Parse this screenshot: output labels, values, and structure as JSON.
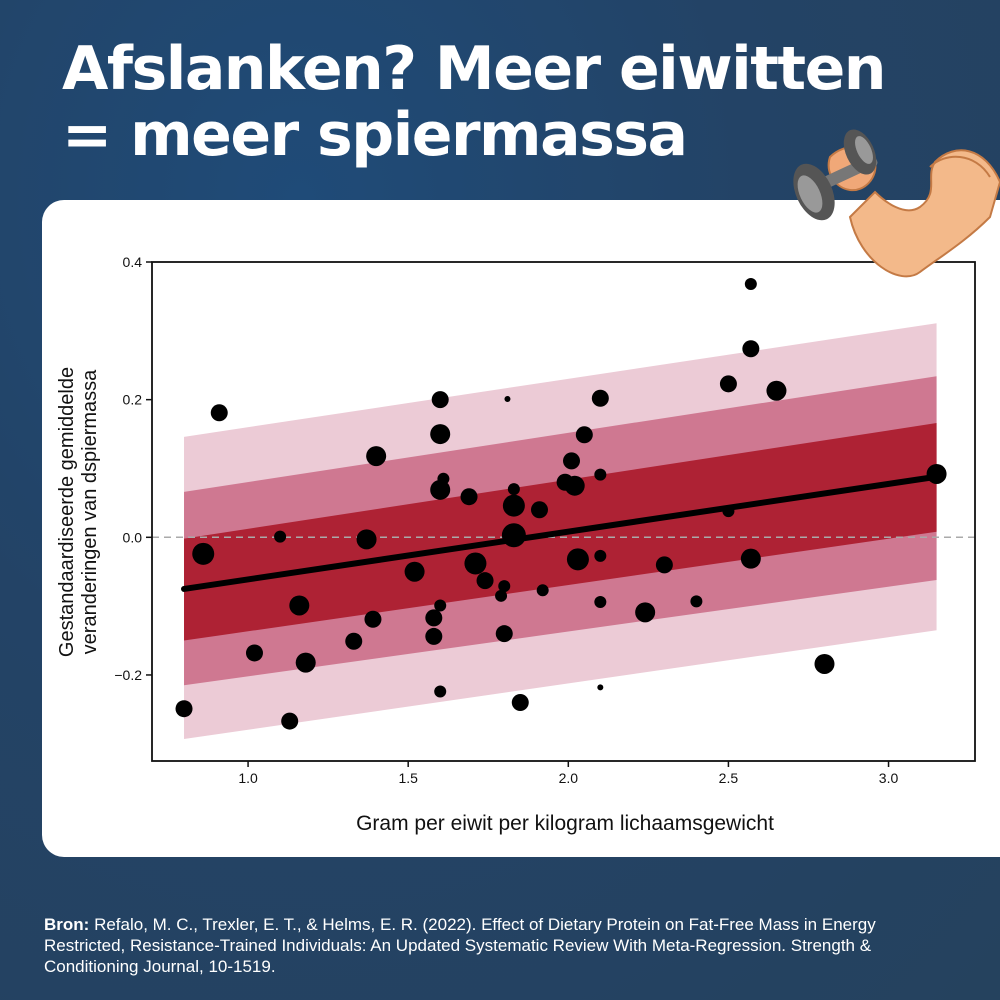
{
  "header": {
    "title_line1": "Afslanken? Meer eiwitten",
    "title_line2": "= meer spiermassa"
  },
  "source": {
    "label": "Bron:",
    "text": "Refalo, M. C., Trexler, E. T., & Helms, E. R. (2022). Effect of Dietary Protein on Fat-Free Mass in Energy Restricted, Resistance-Trained Individuals: An Updated Systematic Review With Meta-Regression. Strength & Conditioning Journal, 10-1519."
  },
  "colors": {
    "background": "#234366",
    "band_inner": "#ae2234",
    "band_middle": "#cf7891",
    "band_outer": "#eccbd6",
    "points": "#000000",
    "regression_line": "#000000",
    "zero_line": "#aaaaaa"
  },
  "decoration": {
    "icon": "flexed-arm-with-dumbbell-icon"
  },
  "chart_data": {
    "type": "scatter",
    "xlabel": "Gram per eiwit per kilogram lichaamsgewicht",
    "ylabel_line1": "Gestandaardiseerde gemiddelde",
    "ylabel_line2": "veranderingen van dspiermassa",
    "xlim": [
      0.7,
      3.27
    ],
    "ylim": [
      -0.325,
      0.4
    ],
    "xticks": [
      1.0,
      1.5,
      2.0,
      2.5,
      3.0
    ],
    "xtick_labels": [
      "1.0",
      "1.5",
      "2.0",
      "2.5",
      "3.0"
    ],
    "yticks": [
      -0.2,
      0.0,
      0.2,
      0.4
    ],
    "ytick_labels": [
      "−0.2",
      "0.0",
      "0.2",
      "0.4"
    ],
    "zero_reference_line": true,
    "grid": false,
    "regression": {
      "x": [
        0.8,
        3.15
      ],
      "y": [
        -0.075,
        0.088
      ]
    },
    "bands": [
      {
        "name": "outer",
        "x": [
          0.8,
          3.15
        ],
        "upper": [
          0.146,
          0.311
        ],
        "lower": [
          -0.293,
          -0.135
        ]
      },
      {
        "name": "middle",
        "x": [
          0.8,
          3.15
        ],
        "upper": [
          0.066,
          0.234
        ],
        "lower": [
          -0.215,
          -0.062
        ]
      },
      {
        "name": "inner",
        "x": [
          0.8,
          3.15
        ],
        "upper": [
          -0.002,
          0.166
        ],
        "lower": [
          -0.15,
          0.008
        ]
      }
    ],
    "points": [
      {
        "x": 0.8,
        "y": -0.249,
        "size": 2
      },
      {
        "x": 0.86,
        "y": -0.024,
        "size": 4
      },
      {
        "x": 0.91,
        "y": 0.181,
        "size": 2
      },
      {
        "x": 1.02,
        "y": -0.168,
        "size": 2
      },
      {
        "x": 1.1,
        "y": 0.001,
        "size": 1
      },
      {
        "x": 1.13,
        "y": -0.267,
        "size": 2
      },
      {
        "x": 1.16,
        "y": -0.099,
        "size": 3
      },
      {
        "x": 1.18,
        "y": -0.182,
        "size": 3
      },
      {
        "x": 1.33,
        "y": -0.151,
        "size": 2
      },
      {
        "x": 1.37,
        "y": -0.003,
        "size": 3
      },
      {
        "x": 1.39,
        "y": -0.119,
        "size": 2
      },
      {
        "x": 1.4,
        "y": 0.118,
        "size": 3
      },
      {
        "x": 1.52,
        "y": -0.05,
        "size": 3
      },
      {
        "x": 1.58,
        "y": -0.117,
        "size": 2
      },
      {
        "x": 1.58,
        "y": -0.144,
        "size": 2
      },
      {
        "x": 1.6,
        "y": -0.099,
        "size": 1
      },
      {
        "x": 1.6,
        "y": -0.224,
        "size": 1
      },
      {
        "x": 1.6,
        "y": 0.2,
        "size": 2
      },
      {
        "x": 1.6,
        "y": 0.15,
        "size": 3
      },
      {
        "x": 1.6,
        "y": 0.069,
        "size": 3
      },
      {
        "x": 1.61,
        "y": 0.085,
        "size": 1
      },
      {
        "x": 1.69,
        "y": 0.059,
        "size": 2
      },
      {
        "x": 1.71,
        "y": -0.038,
        "size": 4
      },
      {
        "x": 1.74,
        "y": -0.063,
        "size": 2
      },
      {
        "x": 1.79,
        "y": -0.085,
        "size": 1
      },
      {
        "x": 1.8,
        "y": -0.071,
        "size": 1
      },
      {
        "x": 1.8,
        "y": -0.14,
        "size": 2
      },
      {
        "x": 1.81,
        "y": 0.201,
        "size": 0
      },
      {
        "x": 1.83,
        "y": 0.046,
        "size": 4
      },
      {
        "x": 1.83,
        "y": 0.07,
        "size": 1
      },
      {
        "x": 1.83,
        "y": 0.003,
        "size": 5
      },
      {
        "x": 1.85,
        "y": -0.24,
        "size": 2
      },
      {
        "x": 1.91,
        "y": 0.04,
        "size": 2
      },
      {
        "x": 1.92,
        "y": -0.077,
        "size": 1
      },
      {
        "x": 1.99,
        "y": 0.08,
        "size": 2
      },
      {
        "x": 2.01,
        "y": 0.111,
        "size": 2
      },
      {
        "x": 2.02,
        "y": 0.075,
        "size": 3
      },
      {
        "x": 2.03,
        "y": -0.032,
        "size": 4
      },
      {
        "x": 2.05,
        "y": 0.149,
        "size": 2
      },
      {
        "x": 2.1,
        "y": 0.202,
        "size": 2
      },
      {
        "x": 2.1,
        "y": 0.091,
        "size": 1
      },
      {
        "x": 2.1,
        "y": -0.027,
        "size": 1
      },
      {
        "x": 2.1,
        "y": -0.094,
        "size": 1
      },
      {
        "x": 2.1,
        "y": -0.218,
        "size": 0
      },
      {
        "x": 2.24,
        "y": -0.109,
        "size": 3
      },
      {
        "x": 2.3,
        "y": -0.04,
        "size": 2
      },
      {
        "x": 2.4,
        "y": -0.093,
        "size": 1
      },
      {
        "x": 2.5,
        "y": 0.223,
        "size": 2
      },
      {
        "x": 2.5,
        "y": 0.038,
        "size": 1
      },
      {
        "x": 2.57,
        "y": 0.368,
        "size": 1
      },
      {
        "x": 2.57,
        "y": 0.274,
        "size": 2
      },
      {
        "x": 2.57,
        "y": -0.031,
        "size": 3
      },
      {
        "x": 2.65,
        "y": 0.213,
        "size": 3
      },
      {
        "x": 2.8,
        "y": -0.184,
        "size": 3
      },
      {
        "x": 3.15,
        "y": 0.092,
        "size": 3
      }
    ]
  }
}
